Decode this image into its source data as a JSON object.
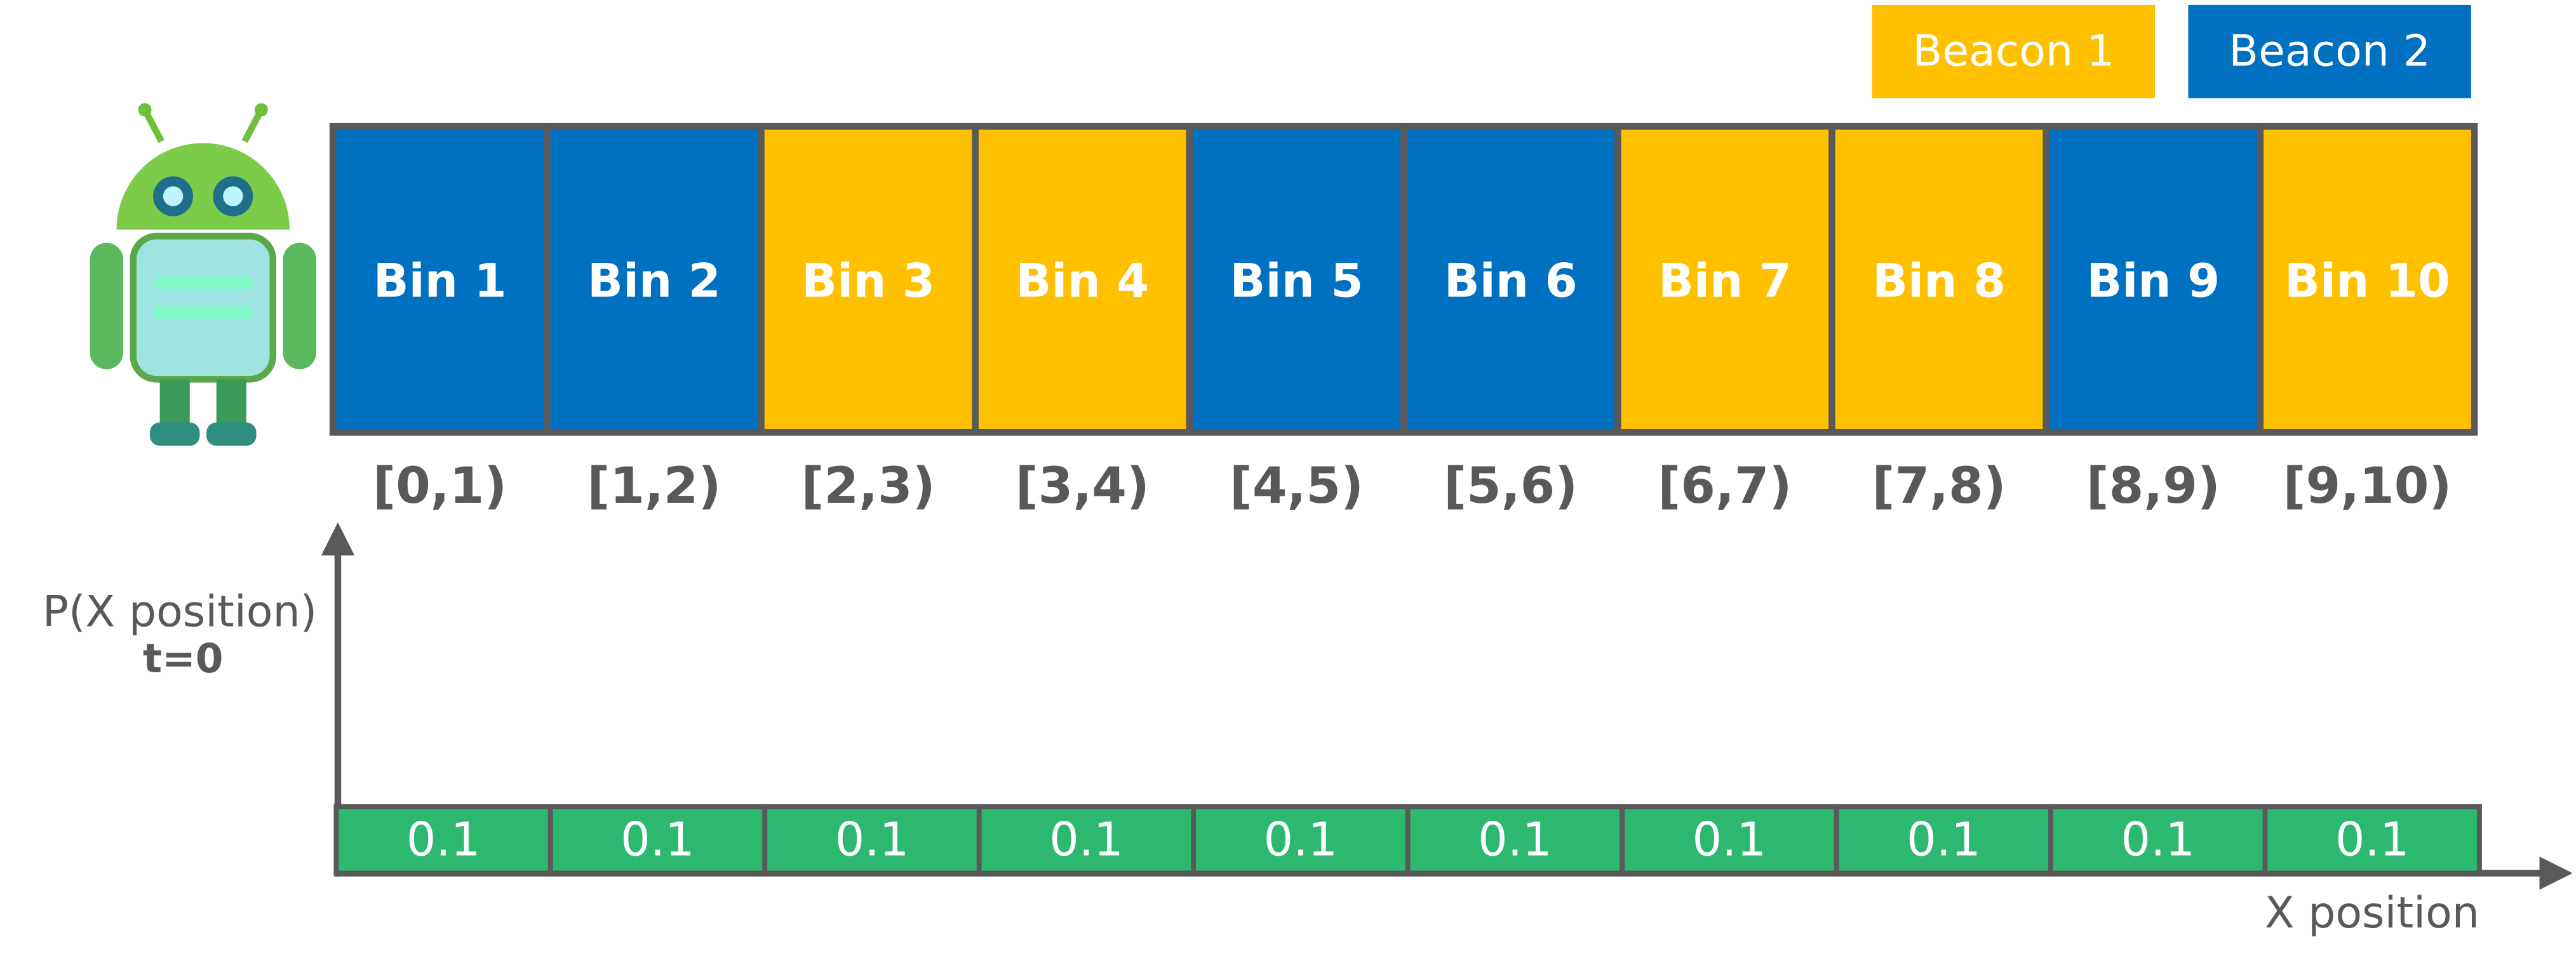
{
  "legend": [
    {
      "label": "Beacon 1",
      "color": "#FFC000"
    },
    {
      "label": "Beacon 2",
      "color": "#0070C0"
    }
  ],
  "bins": [
    {
      "label": "Bin 1",
      "color": "#0070C0",
      "interval": "[0,1)",
      "probability": 0.1
    },
    {
      "label": "Bin 2",
      "color": "#0070C0",
      "interval": "[1,2)",
      "probability": 0.1
    },
    {
      "label": "Bin 3",
      "color": "#FFC000",
      "interval": "[2,3)",
      "probability": 0.1
    },
    {
      "label": "Bin 4",
      "color": "#FFC000",
      "interval": "[3,4)",
      "probability": 0.1
    },
    {
      "label": "Bin 5",
      "color": "#0070C0",
      "interval": "[4,5)",
      "probability": 0.1
    },
    {
      "label": "Bin 6",
      "color": "#0070C0",
      "interval": "[5,6)",
      "probability": 0.1
    },
    {
      "label": "Bin 7",
      "color": "#FFC000",
      "interval": "[6,7)",
      "probability": 0.1
    },
    {
      "label": "Bin 8",
      "color": "#FFC000",
      "interval": "[7,8)",
      "probability": 0.1
    },
    {
      "label": "Bin 9",
      "color": "#0070C0",
      "interval": "[8,9)",
      "probability": 0.1
    },
    {
      "label": "Bin 10",
      "color": "#FFC000",
      "interval": "[9,10)",
      "probability": 0.1
    }
  ],
  "axis": {
    "y_label": "P(X position)",
    "time": "t=0",
    "x_label": "X position",
    "bar_color": "#2DB870"
  }
}
